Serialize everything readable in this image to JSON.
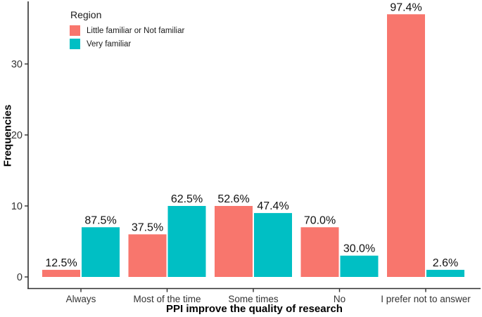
{
  "figure": {
    "background": "#ffffff"
  },
  "colors": {
    "axis": "#2f2f2f",
    "tick_label": "#333333",
    "bar_label": "#111111",
    "series_1": "#F8766D",
    "series_2": "#00BFC4"
  },
  "chart_data": {
    "type": "bar",
    "bar_mode": "dodge",
    "title": "",
    "xlabel": "PPI improve the quality of research",
    "ylabel": "Frequencies",
    "categories": [
      "Always",
      "Most of the time",
      "Some times",
      "No",
      "I prefer not to answer"
    ],
    "series": [
      {
        "name": "Little familiar or Not familiar",
        "color": "#F8766D",
        "values": [
          1,
          6,
          10,
          7,
          37
        ],
        "bar_labels": [
          "12.5%",
          "37.5%",
          "52.6%",
          "70.0%",
          "97.4%"
        ]
      },
      {
        "name": "Very familiar",
        "color": "#00BFC4",
        "values": [
          7,
          10,
          9,
          3,
          1
        ],
        "bar_labels": [
          "87.5%",
          "62.5%",
          "47.4%",
          "30.0%",
          "2.6%"
        ]
      }
    ],
    "ytick_labels": [
      "0",
      "10",
      "20",
      "30"
    ],
    "ytick_values": [
      0,
      10,
      20,
      30
    ],
    "ylim": [
      0,
      38.8
    ],
    "grid": false,
    "legend": {
      "title": "Region",
      "position": "top-left-inside"
    }
  }
}
